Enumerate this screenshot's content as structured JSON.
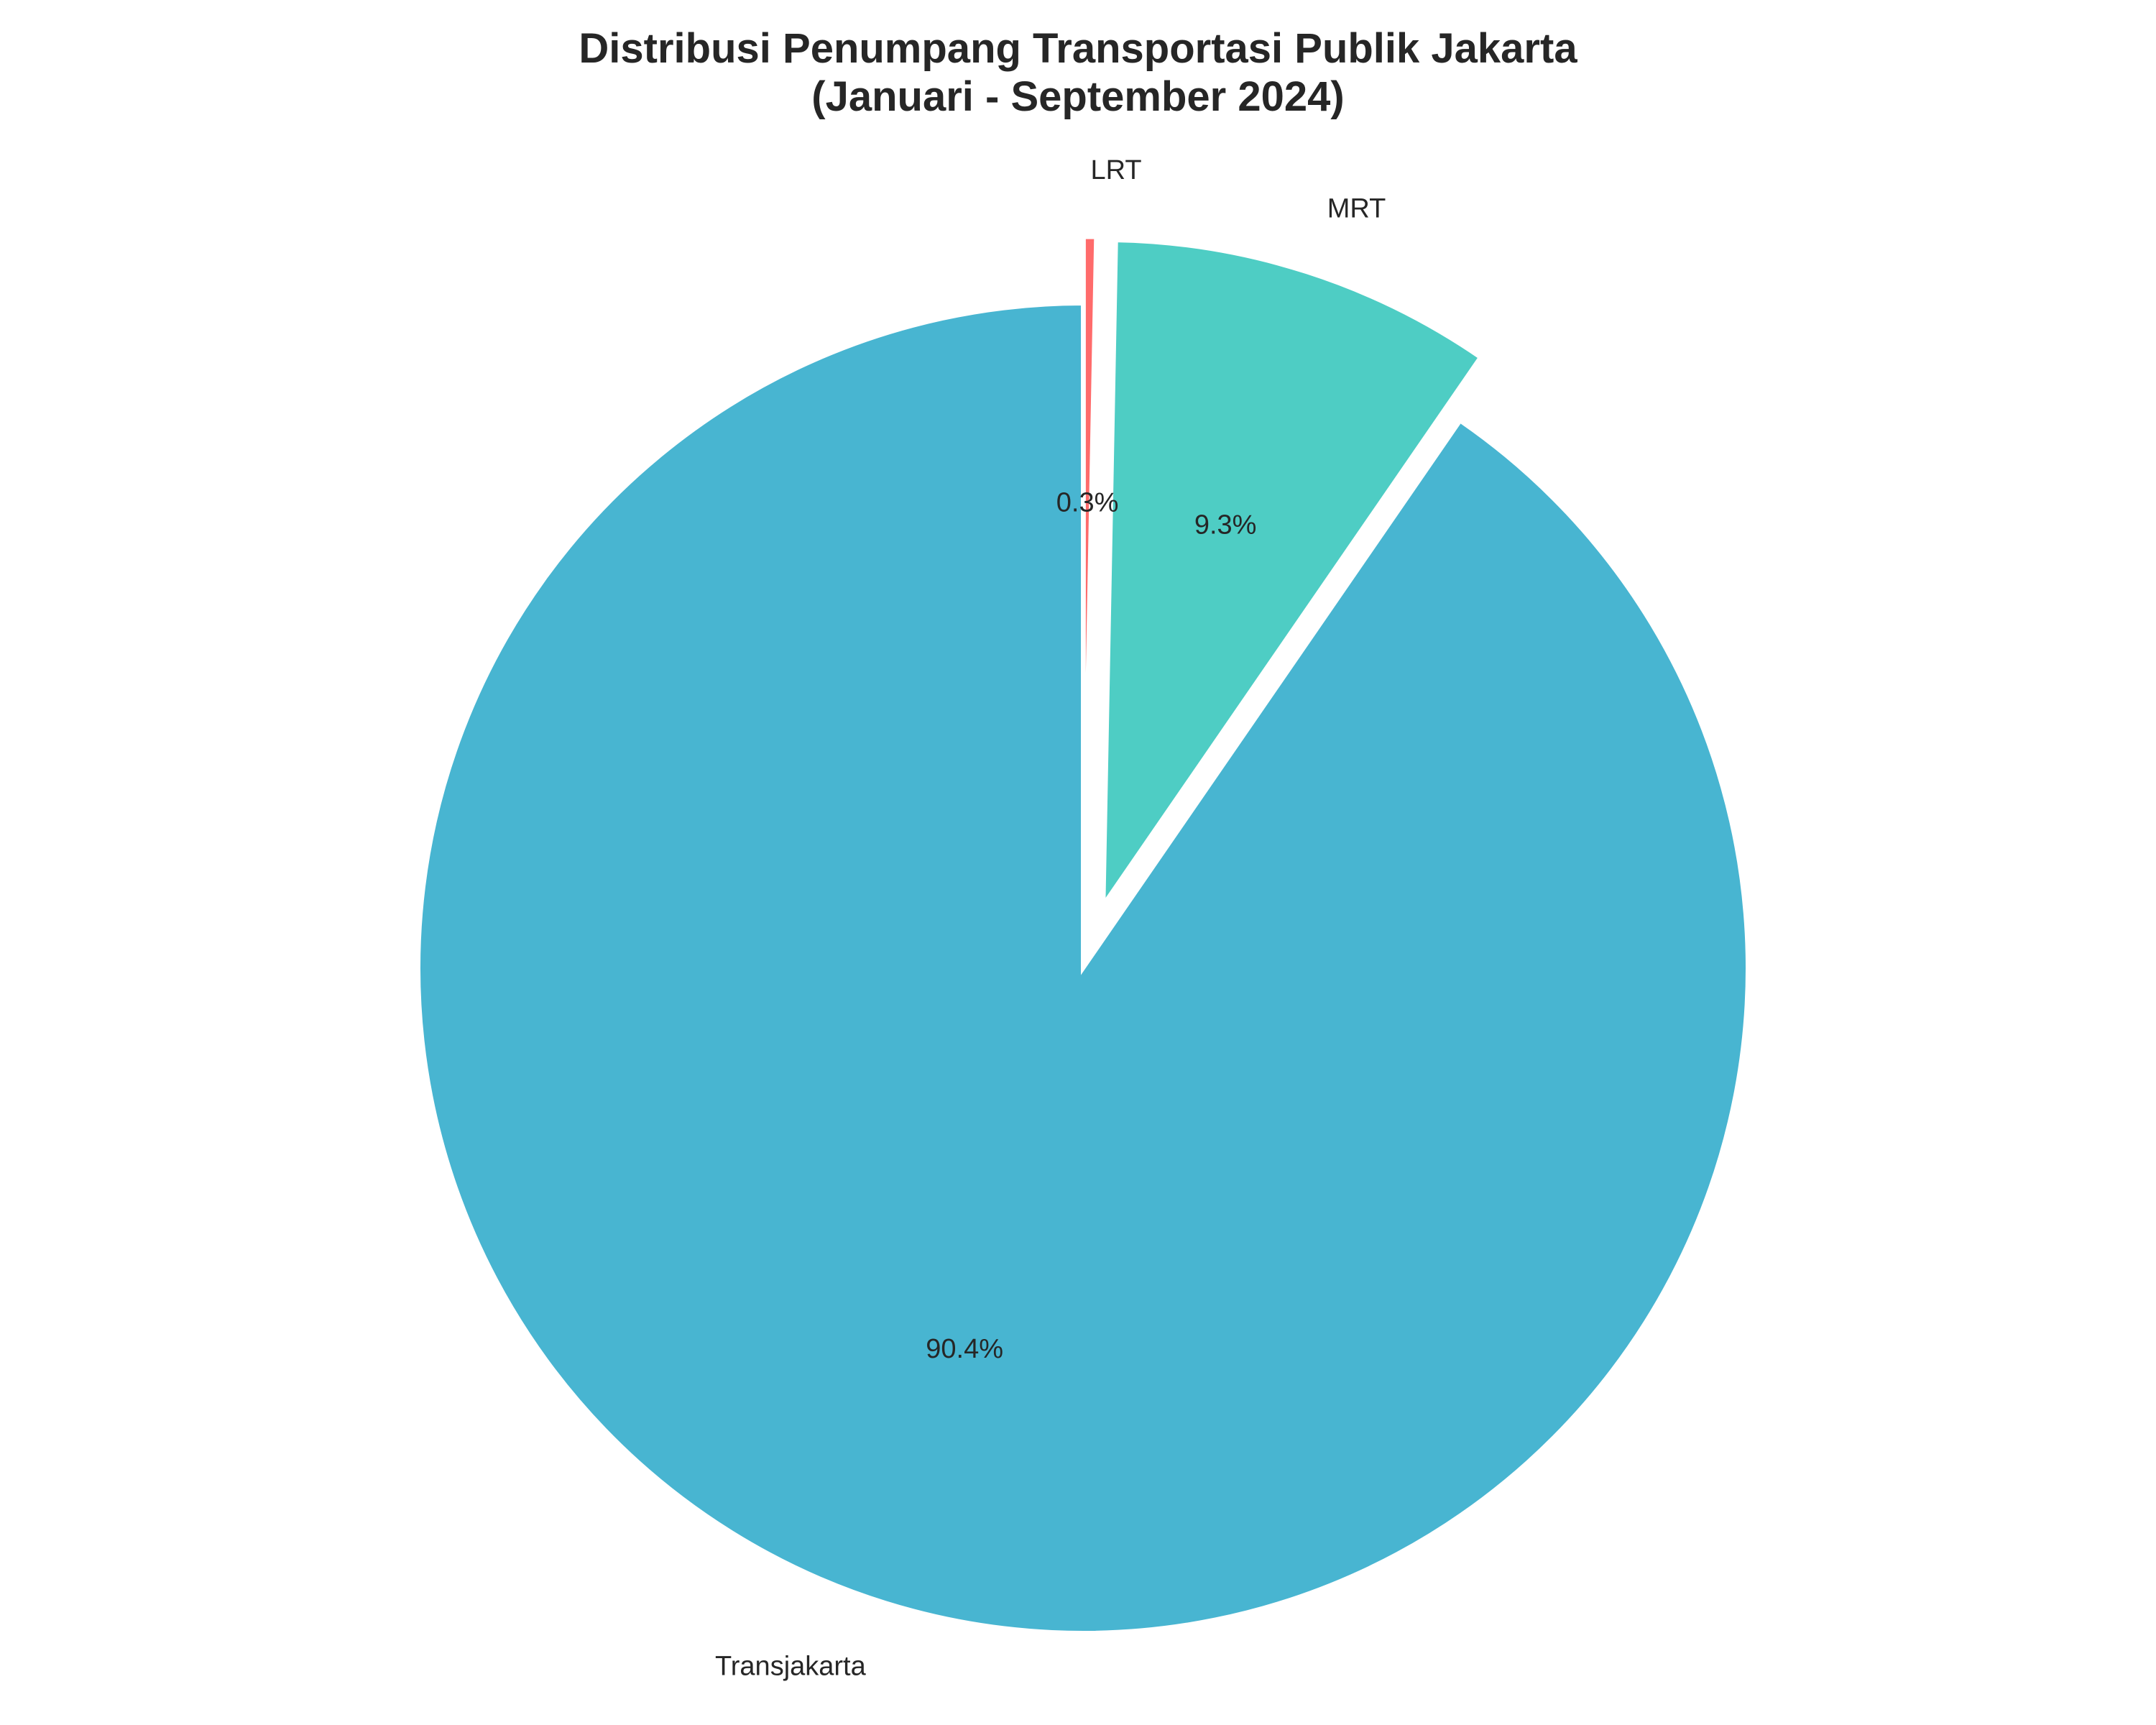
{
  "chart_data": {
    "type": "pie",
    "title_lines": [
      "Distribusi Penumpang Transportasi Publik Jakarta",
      "(Januari - September 2024)"
    ],
    "start_angle_deg": 90,
    "direction": "counterclockwise",
    "slices": [
      {
        "label": "Transjakarta",
        "value": 90.4,
        "pct_label": "90.4%",
        "color": "#48B5D1",
        "exploded": false
      },
      {
        "label": "MRT",
        "value": 9.3,
        "pct_label": "9.3%",
        "color": "#4ECDC4",
        "exploded": true
      },
      {
        "label": "LRT",
        "value": 0.3,
        "pct_label": "0.3%",
        "color": "#FF6B6B",
        "exploded": true
      }
    ],
    "legend": "none",
    "grid": false
  }
}
